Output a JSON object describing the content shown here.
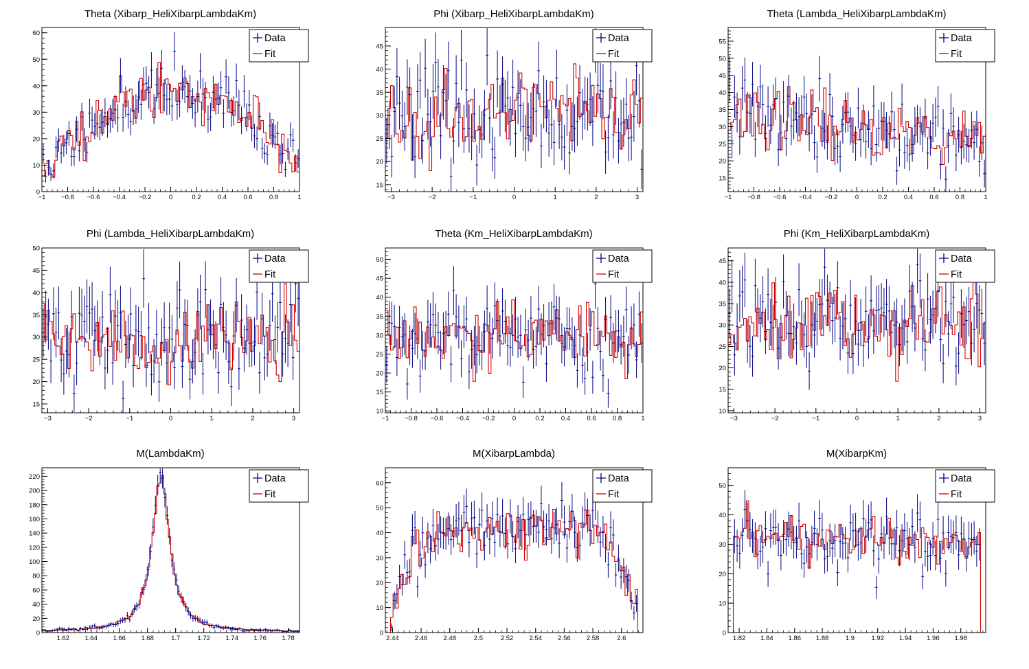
{
  "colors": {
    "data": "#000080",
    "fit": "#cc0000",
    "frame": "#000000",
    "background": "#ffffff"
  },
  "legend": {
    "data_label": "Data",
    "fit_label": "Fit",
    "placement": "top-right"
  },
  "chart_data": [
    {
      "type": "line",
      "title": "Theta (Xibarp_HeliXibarpLambdaKm)",
      "xlabel": "",
      "ylabel": "",
      "xlim": [
        -1,
        1
      ],
      "ylim": [
        0,
        62
      ],
      "xticks": [
        -1,
        -0.8,
        -0.6,
        -0.4,
        -0.2,
        0,
        0.2,
        0.4,
        0.6,
        0.8,
        1
      ],
      "xtick_labels": [
        "−1",
        "−0.8",
        "−0.6",
        "−0.4",
        "−0.2",
        "0",
        "0.2",
        "0.4",
        "0.6",
        "0.8",
        "1"
      ],
      "yticks": [
        0,
        10,
        20,
        30,
        40,
        50,
        60
      ],
      "ytick_labels": [
        "0",
        "10",
        "20",
        "30",
        "40",
        "50",
        "60"
      ],
      "bins": 100,
      "shape": "theta_xi",
      "level": 0,
      "amp": 0,
      "noise": 5.5,
      "seed": 11,
      "series": [
        {
          "name": "Data",
          "style": "points"
        },
        {
          "name": "Fit",
          "style": "step"
        }
      ]
    },
    {
      "type": "line",
      "title": "Phi (Xibarp_HeliXibarpLambdaKm)",
      "xlabel": "",
      "ylabel": "",
      "xlim": [
        -3.1416,
        3.1416
      ],
      "ylim": [
        13.5,
        49
      ],
      "xticks": [
        -3,
        -2,
        -1,
        0,
        1,
        2,
        3
      ],
      "xtick_labels": [
        "−3",
        "−2",
        "−1",
        "0",
        "1",
        "2",
        "3"
      ],
      "yticks": [
        15,
        20,
        25,
        30,
        35,
        40,
        45
      ],
      "ytick_labels": [
        "15",
        "20",
        "25",
        "30",
        "35",
        "40",
        "45"
      ],
      "bins": 100,
      "shape": "flat",
      "level": 30,
      "amp": 0,
      "noise": 5.2,
      "seed": 23,
      "series": [
        {
          "name": "Data",
          "style": "points"
        },
        {
          "name": "Fit",
          "style": "step"
        }
      ]
    },
    {
      "type": "line",
      "title": "Theta (Lambda_HeliXibarpLambdaKm)",
      "xlabel": "",
      "ylabel": "",
      "xlim": [
        -1,
        1
      ],
      "ylim": [
        11,
        59
      ],
      "xticks": [
        -1,
        -0.8,
        -0.6,
        -0.4,
        -0.2,
        0,
        0.2,
        0.4,
        0.6,
        0.8,
        1
      ],
      "xtick_labels": [
        "−1",
        "−0.8",
        "−0.6",
        "−0.4",
        "−0.2",
        "0",
        "0.2",
        "0.4",
        "0.6",
        "0.8",
        "1"
      ],
      "yticks": [
        15,
        20,
        25,
        30,
        35,
        40,
        45,
        50,
        55
      ],
      "ytick_labels": [
        "15",
        "20",
        "25",
        "30",
        "35",
        "40",
        "45",
        "50",
        "55"
      ],
      "bins": 100,
      "shape": "slope",
      "level": 30,
      "amp": 4,
      "noise": 5.3,
      "seed": 37,
      "series": [
        {
          "name": "Data",
          "style": "points"
        },
        {
          "name": "Fit",
          "style": "step"
        }
      ]
    },
    {
      "type": "line",
      "title": "Phi (Lambda_HeliXibarpLambdaKm)",
      "xlabel": "",
      "ylabel": "",
      "xlim": [
        -3.1416,
        3.1416
      ],
      "ylim": [
        13,
        50
      ],
      "xticks": [
        -3,
        -2,
        -1,
        0,
        1,
        2,
        3
      ],
      "xtick_labels": [
        "−3",
        "−2",
        "−1",
        "0",
        "1",
        "2",
        "3"
      ],
      "yticks": [
        15,
        20,
        25,
        30,
        35,
        40,
        45,
        50
      ],
      "ytick_labels": [
        "15",
        "20",
        "25",
        "30",
        "35",
        "40",
        "45",
        "50"
      ],
      "bins": 100,
      "shape": "flat",
      "level": 30,
      "amp": 0,
      "noise": 5.4,
      "seed": 41,
      "series": [
        {
          "name": "Data",
          "style": "points"
        },
        {
          "name": "Fit",
          "style": "step"
        }
      ]
    },
    {
      "type": "line",
      "title": "Theta (Km_HeliXibarpLambdaKm)",
      "xlabel": "",
      "ylabel": "",
      "xlim": [
        -1,
        1
      ],
      "ylim": [
        9.5,
        53
      ],
      "xticks": [
        -1,
        -0.8,
        -0.6,
        -0.4,
        -0.2,
        0,
        0.2,
        0.4,
        0.6,
        0.8,
        1
      ],
      "xtick_labels": [
        "−1",
        "−0.8",
        "−0.6",
        "−0.4",
        "−0.2",
        "0",
        "0.2",
        "0.4",
        "0.6",
        "0.8",
        "1"
      ],
      "yticks": [
        10,
        15,
        20,
        25,
        30,
        35,
        40,
        45,
        50
      ],
      "ytick_labels": [
        "10",
        "15",
        "20",
        "25",
        "30",
        "35",
        "40",
        "45",
        "50"
      ],
      "bins": 100,
      "shape": "flat",
      "level": 30,
      "amp": 0,
      "noise": 5.4,
      "seed": 53,
      "series": [
        {
          "name": "Data",
          "style": "points"
        },
        {
          "name": "Fit",
          "style": "step"
        }
      ]
    },
    {
      "type": "line",
      "title": "Phi (Km_HeliXibarpLambdaKm)",
      "xlabel": "",
      "ylabel": "",
      "xlim": [
        -3.1416,
        3.1416
      ],
      "ylim": [
        9.5,
        48
      ],
      "xticks": [
        -3,
        -2,
        -1,
        0,
        1,
        2,
        3
      ],
      "xtick_labels": [
        "−3",
        "−2",
        "−1",
        "0",
        "1",
        "2",
        "3"
      ],
      "yticks": [
        10,
        15,
        20,
        25,
        30,
        35,
        40,
        45
      ],
      "ytick_labels": [
        "10",
        "15",
        "20",
        "25",
        "30",
        "35",
        "40",
        "45"
      ],
      "bins": 100,
      "shape": "flat",
      "level": 30,
      "amp": 0,
      "noise": 5.3,
      "seed": 67,
      "series": [
        {
          "name": "Data",
          "style": "points"
        },
        {
          "name": "Fit",
          "style": "step"
        }
      ]
    },
    {
      "type": "line",
      "title": "M(LambdaKm)",
      "xlabel": "",
      "ylabel": "",
      "xlim": [
        1.605,
        1.788
      ],
      "ylim": [
        0,
        232
      ],
      "xticks": [
        1.62,
        1.64,
        1.66,
        1.68,
        1.7,
        1.72,
        1.74,
        1.76,
        1.78
      ],
      "xtick_labels": [
        "1.62",
        "1.64",
        "1.66",
        "1.68",
        "1.7",
        "1.72",
        "1.74",
        "1.76",
        "1.78"
      ],
      "yticks": [
        0,
        20,
        40,
        60,
        80,
        100,
        120,
        140,
        160,
        180,
        200,
        220
      ],
      "ytick_labels": [
        "0",
        "20",
        "40",
        "60",
        "80",
        "100",
        "120",
        "140",
        "160",
        "180",
        "200",
        "220"
      ],
      "bins": 110,
      "shape": "peak",
      "level": 1,
      "amp": 218,
      "center": 1.6895,
      "width": 0.0075,
      "noise": 0,
      "seed": 71,
      "series": [
        {
          "name": "Data",
          "style": "points"
        },
        {
          "name": "Fit",
          "style": "step"
        }
      ]
    },
    {
      "type": "line",
      "title": "M(XibarpLambda)",
      "xlabel": "",
      "ylabel": "",
      "xlim": [
        2.435,
        2.615
      ],
      "ylim": [
        0,
        66
      ],
      "xticks": [
        2.44,
        2.46,
        2.48,
        2.5,
        2.52,
        2.54,
        2.56,
        2.58,
        2.6
      ],
      "xtick_labels": [
        "2.44",
        "2.46",
        "2.48",
        "2.5",
        "2.52",
        "2.54",
        "2.56",
        "2.58",
        "2.6"
      ],
      "yticks": [
        0,
        10,
        20,
        30,
        40,
        50,
        60
      ],
      "ytick_labels": [
        "0",
        "10",
        "20",
        "30",
        "40",
        "50",
        "60"
      ],
      "bins": 100,
      "shape": "plateau",
      "level": 42,
      "lo": 2.438,
      "hi": 2.612,
      "noise": 5.5,
      "seed": 83,
      "series": [
        {
          "name": "Data",
          "style": "points"
        },
        {
          "name": "Fit",
          "style": "step"
        }
      ]
    },
    {
      "type": "line",
      "title": "M(XibarpKm)",
      "xlabel": "",
      "ylabel": "",
      "xlim": [
        1.812,
        1.998
      ],
      "ylim": [
        0,
        56
      ],
      "xticks": [
        1.82,
        1.84,
        1.86,
        1.88,
        1.9,
        1.92,
        1.94,
        1.96,
        1.98
      ],
      "xtick_labels": [
        "1.82",
        "1.84",
        "1.86",
        "1.88",
        "1.9",
        "1.92",
        "1.94",
        "1.96",
        "1.98"
      ],
      "yticks": [
        0,
        10,
        20,
        30,
        40,
        50
      ],
      "ytick_labels": [
        "0",
        "10",
        "20",
        "30",
        "40",
        "50"
      ],
      "bins": 100,
      "shape": "box",
      "level": 31,
      "lo": 1.815,
      "hi": 1.994,
      "noise": 5.3,
      "seed": 97,
      "series": [
        {
          "name": "Data",
          "style": "points"
        },
        {
          "name": "Fit",
          "style": "step"
        }
      ]
    }
  ]
}
